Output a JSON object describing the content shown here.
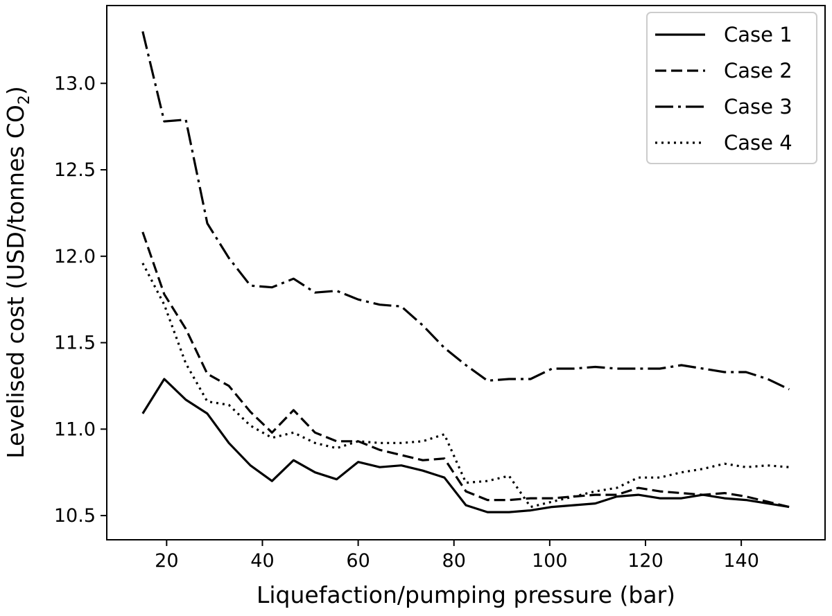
{
  "chart_data": {
    "type": "line",
    "xlabel": "Liquefaction/pumping pressure (bar)",
    "ylabel_main": "Levelised cost (USD/tonnes CO",
    "ylabel_sub": "2",
    "ylabel_end": ")",
    "xlim": [
      7.5,
      157.5
    ],
    "ylim": [
      10.36,
      13.45
    ],
    "x_ticks": [
      20,
      40,
      60,
      80,
      100,
      120,
      140
    ],
    "x_tick_labels": [
      "20",
      "40",
      "60",
      "80",
      "100",
      "120",
      "140"
    ],
    "y_ticks": [
      10.5,
      11.0,
      11.5,
      12.0,
      12.5,
      13.0
    ],
    "y_tick_labels": [
      "10.5",
      "11.0",
      "11.5",
      "12.0",
      "12.5",
      "13.0"
    ],
    "grid": false,
    "legend_position": "top-right",
    "x": [
      15,
      19.5,
      24,
      28.5,
      33,
      37.5,
      42,
      46.5,
      51,
      55.5,
      60,
      64.5,
      69,
      73.5,
      78,
      82.5,
      87,
      91.5,
      96,
      100.5,
      105,
      109.5,
      114,
      118.5,
      123,
      127.5,
      132,
      136.5,
      141,
      145.5,
      150
    ],
    "series": [
      {
        "name": "Case 1",
        "dash": "",
        "values": [
          11.09,
          11.29,
          11.17,
          11.09,
          10.92,
          10.79,
          10.7,
          10.82,
          10.75,
          10.71,
          10.81,
          10.78,
          10.79,
          10.76,
          10.72,
          10.56,
          10.52,
          10.52,
          10.53,
          10.55,
          10.56,
          10.57,
          10.61,
          10.62,
          10.6,
          10.6,
          10.62,
          10.6,
          10.59,
          10.57,
          10.55
        ]
      },
      {
        "name": "Case 2",
        "dash": "16,7",
        "values": [
          12.14,
          11.78,
          11.58,
          11.32,
          11.25,
          11.1,
          10.98,
          11.11,
          10.98,
          10.93,
          10.93,
          10.88,
          10.85,
          10.82,
          10.83,
          10.64,
          10.59,
          10.59,
          10.6,
          10.6,
          10.61,
          10.62,
          10.62,
          10.66,
          10.64,
          10.63,
          10.62,
          10.63,
          10.61,
          10.58,
          10.55
        ]
      },
      {
        "name": "Case 3",
        "dash": "26,7,4,7",
        "values": [
          13.3,
          12.78,
          12.79,
          12.19,
          11.99,
          11.83,
          11.82,
          11.87,
          11.79,
          11.8,
          11.75,
          11.72,
          11.71,
          11.6,
          11.47,
          11.37,
          11.28,
          11.29,
          11.29,
          11.35,
          11.35,
          11.36,
          11.35,
          11.35,
          11.35,
          11.37,
          11.35,
          11.33,
          11.33,
          11.29,
          11.23
        ]
      },
      {
        "name": "Case 4",
        "dash": "3,6",
        "values": [
          11.96,
          11.72,
          11.38,
          11.16,
          11.14,
          11.02,
          10.95,
          10.98,
          10.92,
          10.89,
          10.93,
          10.92,
          10.92,
          10.93,
          10.97,
          10.69,
          10.7,
          10.73,
          10.55,
          10.58,
          10.61,
          10.64,
          10.66,
          10.72,
          10.72,
          10.75,
          10.77,
          10.8,
          10.78,
          10.79,
          10.78
        ]
      }
    ]
  }
}
